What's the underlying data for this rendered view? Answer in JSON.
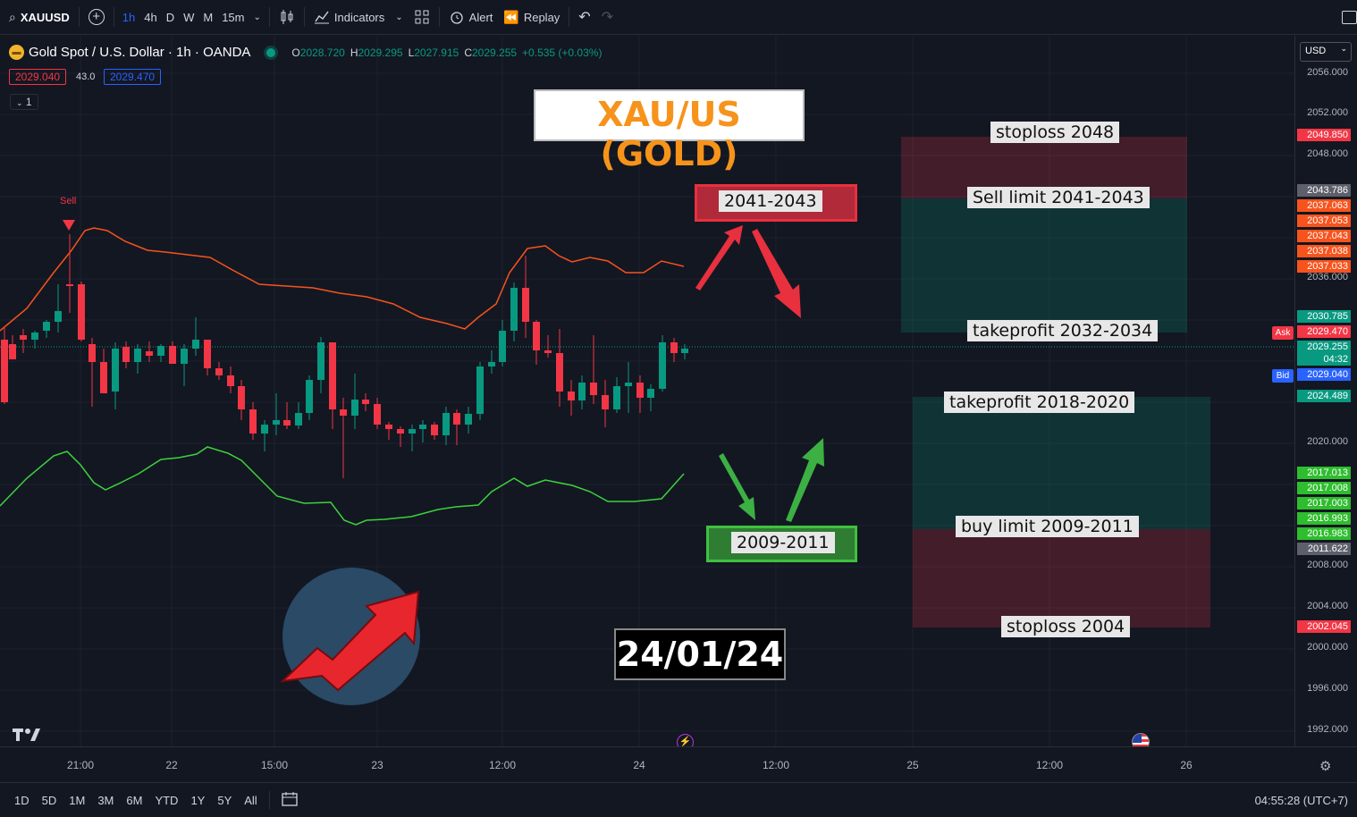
{
  "toolbar": {
    "symbol": "XAUUSD",
    "timeframes": [
      "1h",
      "4h",
      "D",
      "W",
      "M",
      "15m"
    ],
    "active_timeframe": "1h",
    "indicators": "Indicators",
    "alert": "Alert",
    "replay": "Replay"
  },
  "legend": {
    "title": "Gold Spot / U.S. Dollar · 1h · OANDA",
    "o_lbl": "O",
    "o": "2028.720",
    "h_lbl": "H",
    "h": "2029.295",
    "l_lbl": "L",
    "l": "2027.915",
    "c_lbl": "C",
    "c": "2029.255",
    "change": "+0.535 (+0.03%)",
    "bid_tag": "2029.040",
    "spread": "43.0",
    "ask_tag": "2029.470",
    "indicator_count": "1"
  },
  "annotations": {
    "title": "XAU/US (GOLD)",
    "sell_zone": "2041-2043",
    "buy_zone": "2009-2011",
    "date": "24/01/24",
    "sell_marker": "Sell",
    "stoploss_top": "stoploss 2048",
    "sell_limit": "Sell limit 2041-2043",
    "takeprofit_sell": "takeprofit 2032-2034",
    "takeprofit_buy": "takeprofit 2018-2020",
    "buy_limit": "buy limit 2009-2011",
    "stoploss_bottom": "stoploss 2004"
  },
  "price_axis": {
    "currency": "USD",
    "labels": [
      "2056.000",
      "2052.000",
      "2048.000",
      "2036.000",
      "2020.000",
      "2008.000",
      "2004.000",
      "2000.000",
      "1996.000",
      "1992.000"
    ],
    "tags": [
      {
        "v": "2049.850",
        "c": "#f23645"
      },
      {
        "v": "2043.786",
        "c": "#5d606b"
      },
      {
        "v": "2037.063",
        "c": "#f7531d"
      },
      {
        "v": "2037.053",
        "c": "#f7531d"
      },
      {
        "v": "2037.043",
        "c": "#f7531d"
      },
      {
        "v": "2037.038",
        "c": "#f7531d"
      },
      {
        "v": "2037.033",
        "c": "#f7531d"
      },
      {
        "v": "2030.785",
        "c": "#089981"
      },
      {
        "v": "2029.470",
        "c": "#f23645"
      },
      {
        "v": "2029.255",
        "c": "#089981"
      },
      {
        "v": "04:32",
        "c": "#089981"
      },
      {
        "v": "2029.040",
        "c": "#2962ff"
      },
      {
        "v": "2024.489",
        "c": "#089981"
      },
      {
        "v": "2017.013",
        "c": "#2ebd2e"
      },
      {
        "v": "2017.008",
        "c": "#2ebd2e"
      },
      {
        "v": "2017.003",
        "c": "#2ebd2e"
      },
      {
        "v": "2016.993",
        "c": "#2ebd2e"
      },
      {
        "v": "2016.983",
        "c": "#2ebd2e"
      },
      {
        "v": "2011.622",
        "c": "#5d606b"
      },
      {
        "v": "2002.045",
        "c": "#f23645"
      }
    ],
    "ask_label": "Ask",
    "bid_label": "Bid"
  },
  "time_axis": [
    "21:00",
    "22",
    "15:00",
    "23",
    "12:00",
    "24",
    "12:00",
    "25",
    "12:00",
    "26"
  ],
  "bottom": {
    "ranges": [
      "1D",
      "5D",
      "1M",
      "3M",
      "6M",
      "YTD",
      "1Y",
      "5Y",
      "All"
    ],
    "clock": "04:55:28 (UTC+7)"
  },
  "colors": {
    "up": "#089981",
    "down": "#f23645",
    "upper_band": "#f7531d",
    "lower_band": "#3cd33c"
  }
}
